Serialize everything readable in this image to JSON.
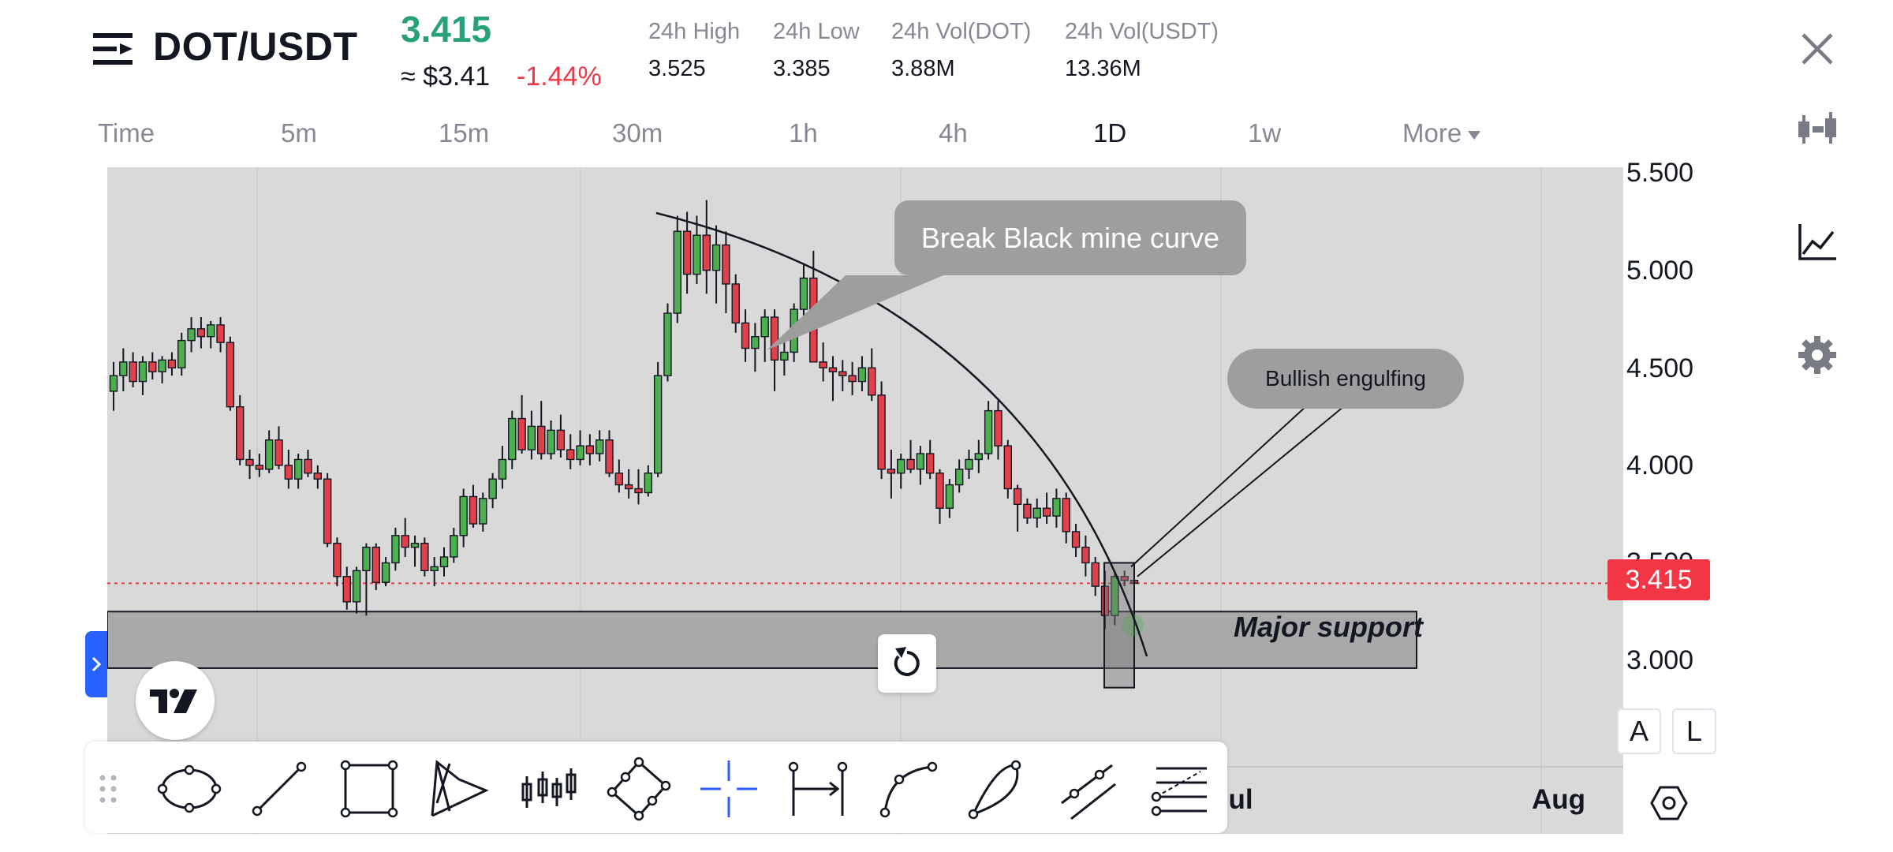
{
  "header": {
    "pair": "DOT/USDT",
    "price": "3.415",
    "price_usd": "≈ $3.41",
    "change": "-1.44%",
    "stats": [
      {
        "label": "24h High",
        "value": "3.525"
      },
      {
        "label": "24h Low",
        "value": "3.385"
      },
      {
        "label": "24h Vol(DOT)",
        "value": "3.88M"
      },
      {
        "label": "24h Vol(USDT)",
        "value": "13.36M"
      }
    ]
  },
  "tabs": [
    "Time",
    "5m",
    "15m",
    "30m",
    "1h",
    "4h",
    "1D",
    "1w",
    "More"
  ],
  "active_tab": "1D",
  "chart": {
    "price_ticks": [
      "5.500",
      "5.000",
      "4.500",
      "4.000",
      "3.500",
      "3.000"
    ],
    "current_price": "3.415",
    "x_ticks": [
      "Jul",
      "Aug"
    ],
    "callout_break": "Break Black mine curve",
    "callout_bullish": "Bullish engulfing",
    "support_label": "Major support",
    "btn_auto": "A",
    "btn_log": "L"
  },
  "colors": {
    "up": "#26a17b",
    "down": "#f23645",
    "candle_up": "#4caf50",
    "candle_down": "#e0404a",
    "accent": "#2962ff",
    "chart_bg": "#d9d9d9"
  },
  "toolbar_tools": [
    "drag-handle-icon",
    "ellipse-tool-icon",
    "trend-line-tool-icon",
    "rectangle-tool-icon",
    "pattern-tool-icon",
    "long-position-candles-icon",
    "rotated-rectangle-tool-icon",
    "crosshair-tool-icon",
    "date-range-tool-icon",
    "arc-tool-icon",
    "curve-tool-icon",
    "ray-tool-icon",
    "fib-retracement-tool-icon"
  ],
  "chart_data": {
    "type": "candlestick",
    "ylim": [
      2.8,
      5.5
    ],
    "candles": [
      [
        4.4,
        4.55,
        4.3,
        4.48
      ],
      [
        4.48,
        4.62,
        4.4,
        4.55
      ],
      [
        4.55,
        4.6,
        4.42,
        4.45
      ],
      [
        4.45,
        4.58,
        4.38,
        4.55
      ],
      [
        4.55,
        4.6,
        4.46,
        4.5
      ],
      [
        4.5,
        4.58,
        4.44,
        4.56
      ],
      [
        4.56,
        4.6,
        4.48,
        4.52
      ],
      [
        4.52,
        4.7,
        4.48,
        4.66
      ],
      [
        4.66,
        4.78,
        4.6,
        4.72
      ],
      [
        4.72,
        4.78,
        4.62,
        4.68
      ],
      [
        4.68,
        4.76,
        4.62,
        4.74
      ],
      [
        4.74,
        4.78,
        4.6,
        4.65
      ],
      [
        4.65,
        4.68,
        4.3,
        4.32
      ],
      [
        4.32,
        4.38,
        4.02,
        4.05
      ],
      [
        4.05,
        4.1,
        3.95,
        4.02
      ],
      [
        4.02,
        4.08,
        3.96,
        4.0
      ],
      [
        4.0,
        4.2,
        3.98,
        4.15
      ],
      [
        4.15,
        4.22,
        4.0,
        4.02
      ],
      [
        4.02,
        4.1,
        3.9,
        3.95
      ],
      [
        3.95,
        4.08,
        3.9,
        4.05
      ],
      [
        4.05,
        4.1,
        3.96,
        3.98
      ],
      [
        3.98,
        4.02,
        3.9,
        3.95
      ],
      [
        3.95,
        3.98,
        3.6,
        3.62
      ],
      [
        3.62,
        3.65,
        3.4,
        3.45
      ],
      [
        3.45,
        3.5,
        3.28,
        3.32
      ],
      [
        3.32,
        3.5,
        3.26,
        3.48
      ],
      [
        3.48,
        3.62,
        3.25,
        3.6
      ],
      [
        3.6,
        3.62,
        3.38,
        3.42
      ],
      [
        3.42,
        3.55,
        3.4,
        3.52
      ],
      [
        3.52,
        3.7,
        3.48,
        3.66
      ],
      [
        3.66,
        3.75,
        3.55,
        3.6
      ],
      [
        3.6,
        3.66,
        3.5,
        3.62
      ],
      [
        3.62,
        3.65,
        3.45,
        3.48
      ],
      [
        3.48,
        3.55,
        3.4,
        3.5
      ],
      [
        3.5,
        3.6,
        3.45,
        3.55
      ],
      [
        3.55,
        3.7,
        3.52,
        3.66
      ],
      [
        3.66,
        3.9,
        3.6,
        3.86
      ],
      [
        3.86,
        3.92,
        3.7,
        3.72
      ],
      [
        3.72,
        3.88,
        3.68,
        3.85
      ],
      [
        3.85,
        3.98,
        3.8,
        3.95
      ],
      [
        3.95,
        4.12,
        3.9,
        4.05
      ],
      [
        4.05,
        4.3,
        4.0,
        4.26
      ],
      [
        4.26,
        4.38,
        4.08,
        4.1
      ],
      [
        4.1,
        4.3,
        4.05,
        4.22
      ],
      [
        4.22,
        4.35,
        4.05,
        4.08
      ],
      [
        4.08,
        4.25,
        4.05,
        4.2
      ],
      [
        4.2,
        4.28,
        4.06,
        4.1
      ],
      [
        4.1,
        4.18,
        4.0,
        4.05
      ],
      [
        4.05,
        4.2,
        4.02,
        4.12
      ],
      [
        4.12,
        4.18,
        4.02,
        4.08
      ],
      [
        4.08,
        4.2,
        4.04,
        4.15
      ],
      [
        4.15,
        4.2,
        3.96,
        3.98
      ],
      [
        3.98,
        4.05,
        3.88,
        3.92
      ],
      [
        3.92,
        4.0,
        3.85,
        3.9
      ],
      [
        3.9,
        4.0,
        3.82,
        3.88
      ],
      [
        3.88,
        4.02,
        3.86,
        3.98
      ],
      [
        3.98,
        4.55,
        3.96,
        4.48
      ],
      [
        4.48,
        4.85,
        4.45,
        4.8
      ],
      [
        4.8,
        5.3,
        4.75,
        5.22
      ],
      [
        5.22,
        5.32,
        4.9,
        5.0
      ],
      [
        5.0,
        5.3,
        4.95,
        5.2
      ],
      [
        5.2,
        5.38,
        4.9,
        5.02
      ],
      [
        5.02,
        5.25,
        4.85,
        5.15
      ],
      [
        5.15,
        5.22,
        4.8,
        4.95
      ],
      [
        4.95,
        5.0,
        4.7,
        4.75
      ],
      [
        4.75,
        4.82,
        4.55,
        4.62
      ],
      [
        4.62,
        4.75,
        4.5,
        4.68
      ],
      [
        4.68,
        4.82,
        4.55,
        4.78
      ],
      [
        4.78,
        4.82,
        4.4,
        4.56
      ],
      [
        4.56,
        4.65,
        4.48,
        4.6
      ],
      [
        4.6,
        4.85,
        4.55,
        4.82
      ],
      [
        4.82,
        5.05,
        4.78,
        4.98
      ],
      [
        4.98,
        5.12,
        4.55,
        4.55
      ],
      [
        4.55,
        4.65,
        4.45,
        4.52
      ],
      [
        4.52,
        4.58,
        4.35,
        4.5
      ],
      [
        4.5,
        4.56,
        4.4,
        4.48
      ],
      [
        4.48,
        4.55,
        4.38,
        4.45
      ],
      [
        4.45,
        4.58,
        4.4,
        4.52
      ],
      [
        4.52,
        4.62,
        4.35,
        4.38
      ],
      [
        4.38,
        4.45,
        3.95,
        4.0
      ],
      [
        4.0,
        4.1,
        3.85,
        3.98
      ],
      [
        3.98,
        4.08,
        3.9,
        4.05
      ],
      [
        4.05,
        4.15,
        3.98,
        4.0
      ],
      [
        4.0,
        4.12,
        3.92,
        4.08
      ],
      [
        4.08,
        4.15,
        3.95,
        3.98
      ],
      [
        3.98,
        4.0,
        3.72,
        3.8
      ],
      [
        3.8,
        3.95,
        3.75,
        3.92
      ],
      [
        3.92,
        4.05,
        3.88,
        4.0
      ],
      [
        4.0,
        4.1,
        3.95,
        4.05
      ],
      [
        4.05,
        4.15,
        3.98,
        4.08
      ],
      [
        4.08,
        4.35,
        4.05,
        4.3
      ],
      [
        4.3,
        4.35,
        4.05,
        4.12
      ],
      [
        4.12,
        4.15,
        3.85,
        3.9
      ],
      [
        3.9,
        3.92,
        3.68,
        3.82
      ],
      [
        3.82,
        3.85,
        3.72,
        3.75
      ],
      [
        3.75,
        3.85,
        3.7,
        3.8
      ],
      [
        3.8,
        3.88,
        3.72,
        3.76
      ],
      [
        3.76,
        3.9,
        3.7,
        3.85
      ],
      [
        3.85,
        3.88,
        3.62,
        3.68
      ],
      [
        3.68,
        3.72,
        3.55,
        3.6
      ],
      [
        3.6,
        3.66,
        3.45,
        3.52
      ],
      [
        3.52,
        3.55,
        3.35,
        3.4
      ],
      [
        3.4,
        3.48,
        3.18,
        3.25
      ],
      [
        3.25,
        3.48,
        3.2,
        3.45
      ],
      [
        3.45,
        3.48,
        3.4,
        3.43
      ],
      [
        3.43,
        3.45,
        3.38,
        3.415
      ]
    ]
  }
}
